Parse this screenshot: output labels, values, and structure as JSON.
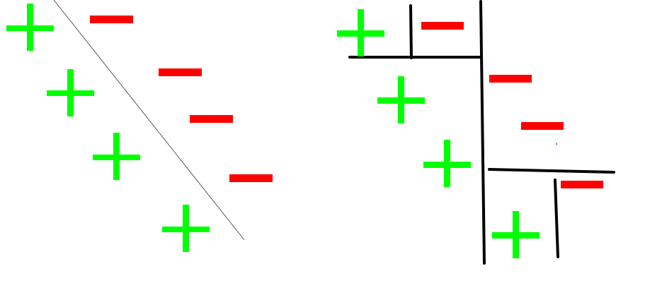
{
  "colors": {
    "positive": "#00ff00",
    "negative": "#ff0000",
    "boundary": "#000000",
    "diagonal_boundary": "#555555",
    "background": "#ffffff"
  },
  "left_panel": {
    "boundary_type": "diagonal line",
    "positive_count": 4,
    "negative_count": 4
  },
  "right_panel": {
    "boundary_type": "axis-aligned splits",
    "positive_count": 4,
    "negative_count": 4
  }
}
